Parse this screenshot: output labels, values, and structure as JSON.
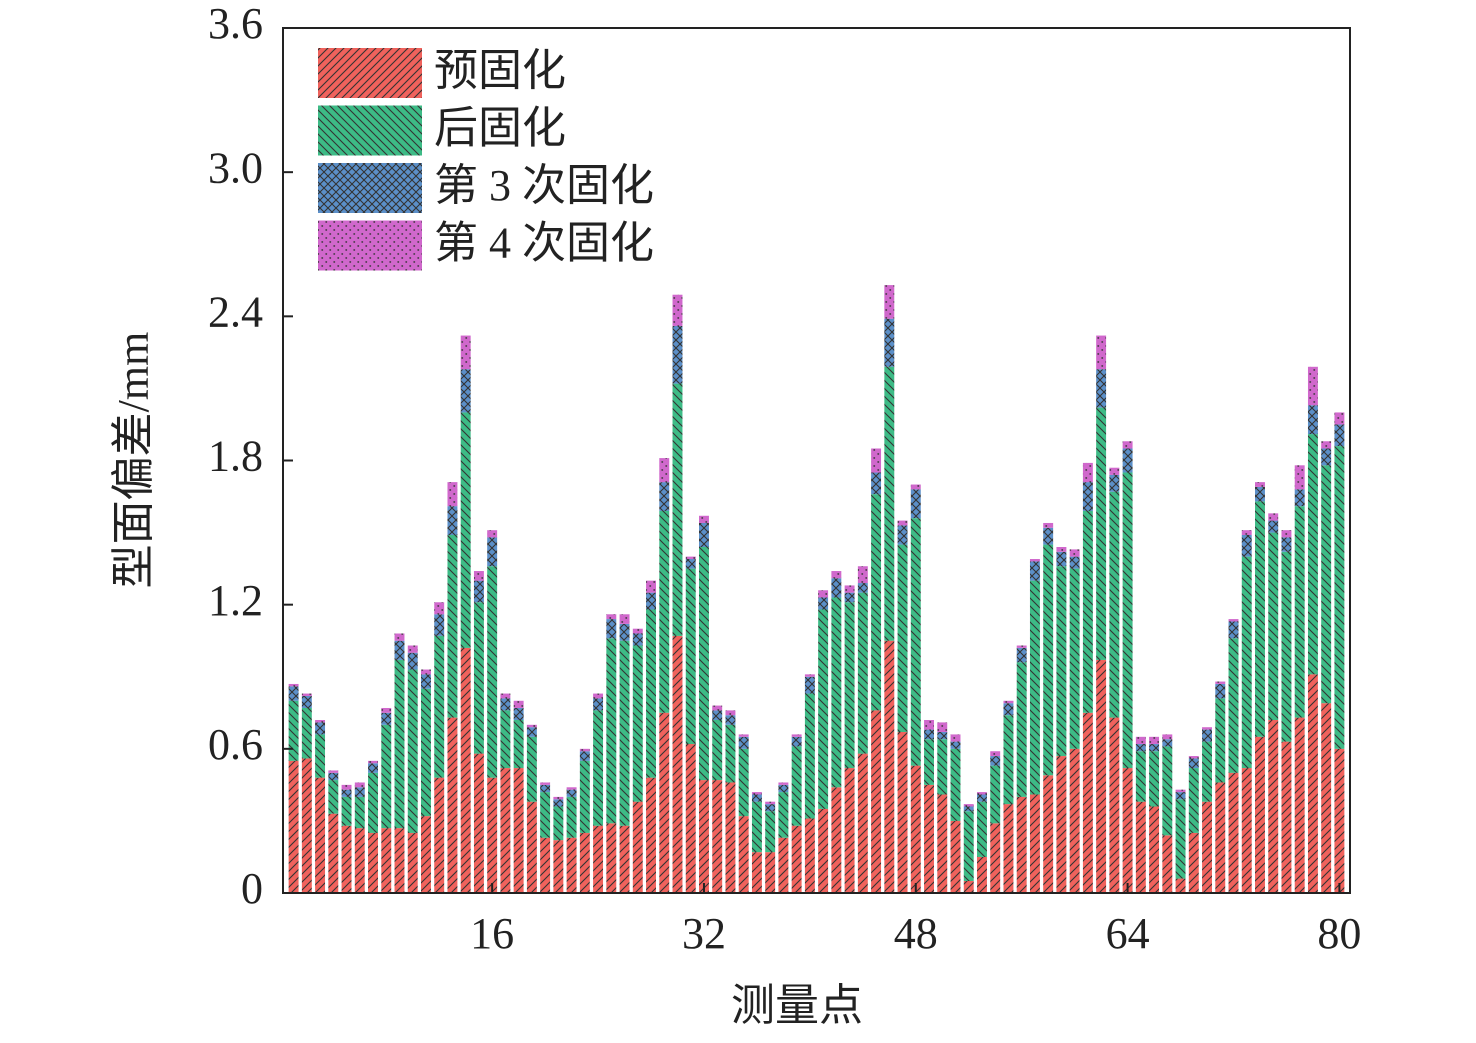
{
  "chart_data": {
    "type": "stacked_bar",
    "x_label": "测量点",
    "y_label": "型面偏差/mm",
    "x": [
      1,
      2,
      3,
      4,
      5,
      6,
      7,
      8,
      9,
      10,
      11,
      12,
      13,
      14,
      15,
      16,
      17,
      18,
      19,
      20,
      21,
      22,
      23,
      24,
      25,
      26,
      27,
      28,
      29,
      30,
      31,
      32,
      33,
      34,
      35,
      36,
      37,
      38,
      39,
      40,
      41,
      42,
      43,
      44,
      45,
      46,
      47,
      48,
      49,
      50,
      51,
      52,
      53,
      54,
      55,
      56,
      57,
      58,
      59,
      60,
      61,
      62,
      63,
      64,
      65,
      66,
      67,
      68,
      69,
      70,
      71,
      72,
      73,
      74,
      75,
      76,
      77,
      78,
      79,
      80
    ],
    "xlim": [
      0.2,
      80.8
    ],
    "xticks": [
      16,
      32,
      48,
      64,
      80
    ],
    "ylim": [
      0,
      3.6
    ],
    "yticks": [
      0,
      0.6,
      1.2,
      1.8,
      2.4,
      {
        "value": 3,
        "label": "3.0"
      },
      3.6
    ],
    "legend": "upper left",
    "series": [
      {
        "name": "预固化",
        "color": "#f0625c",
        "values": [
          0.55,
          0.56,
          0.48,
          0.33,
          0.28,
          0.27,
          0.25,
          0.27,
          0.27,
          0.25,
          0.32,
          0.48,
          0.73,
          1.02,
          0.58,
          0.48,
          0.52,
          0.52,
          0.38,
          0.23,
          0.22,
          0.23,
          0.25,
          0.28,
          0.29,
          0.28,
          0.38,
          0.48,
          0.75,
          1.07,
          0.62,
          0.47,
          0.47,
          0.46,
          0.32,
          0.17,
          0.17,
          0.23,
          0.28,
          0.31,
          0.35,
          0.44,
          0.52,
          0.58,
          0.76,
          1.05,
          0.67,
          0.53,
          0.45,
          0.41,
          0.3,
          0.05,
          0.15,
          0.29,
          0.37,
          0.4,
          0.41,
          0.49,
          0.57,
          0.6,
          0.75,
          0.97,
          0.73,
          0.52,
          0.38,
          0.36,
          0.24,
          0.06,
          0.25,
          0.38,
          0.46,
          0.5,
          0.52,
          0.65,
          0.72,
          0.63,
          0.73,
          0.91,
          0.79,
          0.6
        ]
      },
      {
        "name": "后固化",
        "color": "#3dbb86",
        "values": [
          0.25,
          0.21,
          0.18,
          0.14,
          0.12,
          0.13,
          0.25,
          0.43,
          0.7,
          0.68,
          0.53,
          0.59,
          0.76,
          0.98,
          0.63,
          0.88,
          0.24,
          0.2,
          0.27,
          0.19,
          0.14,
          0.17,
          0.3,
          0.48,
          0.77,
          0.77,
          0.65,
          0.7,
          0.84,
          1.05,
          0.73,
          0.97,
          0.25,
          0.24,
          0.28,
          0.21,
          0.17,
          0.19,
          0.33,
          0.52,
          0.83,
          0.79,
          0.69,
          0.67,
          0.9,
          1.14,
          0.78,
          1.03,
          0.19,
          0.23,
          0.3,
          0.29,
          0.23,
          0.24,
          0.37,
          0.56,
          0.89,
          0.96,
          0.79,
          0.75,
          0.84,
          1.05,
          0.94,
          1.23,
          0.21,
          0.23,
          0.37,
          0.33,
          0.27,
          0.25,
          0.35,
          0.56,
          0.88,
          0.98,
          0.78,
          0.79,
          0.88,
          1.0,
          0.99,
          1.26
        ]
      },
      {
        "name": "第 3 次固化",
        "color": "#5b8fc8",
        "values": [
          0.06,
          0.05,
          0.05,
          0.03,
          0.03,
          0.04,
          0.04,
          0.05,
          0.08,
          0.07,
          0.06,
          0.09,
          0.12,
          0.18,
          0.09,
          0.12,
          0.05,
          0.05,
          0.04,
          0.03,
          0.03,
          0.03,
          0.04,
          0.05,
          0.08,
          0.07,
          0.05,
          0.07,
          0.12,
          0.24,
          0.04,
          0.1,
          0.04,
          0.04,
          0.05,
          0.03,
          0.03,
          0.03,
          0.04,
          0.07,
          0.05,
          0.08,
          0.04,
          0.04,
          0.09,
          0.2,
          0.08,
          0.12,
          0.04,
          0.03,
          0.03,
          0.02,
          0.03,
          0.04,
          0.05,
          0.06,
          0.08,
          0.07,
          0.06,
          0.05,
          0.12,
          0.16,
          0.07,
          0.1,
          0.03,
          0.03,
          0.03,
          0.03,
          0.04,
          0.05,
          0.06,
          0.07,
          0.09,
          0.06,
          0.05,
          0.06,
          0.07,
          0.12,
          0.07,
          0.09
        ]
      },
      {
        "name": "第 4 次固化",
        "color": "#d068cc",
        "values": [
          0.01,
          0.01,
          0.01,
          0.01,
          0.02,
          0.02,
          0.01,
          0.02,
          0.03,
          0.03,
          0.02,
          0.05,
          0.1,
          0.14,
          0.04,
          0.03,
          0.02,
          0.03,
          0.01,
          0.01,
          0.01,
          0.01,
          0.01,
          0.02,
          0.02,
          0.04,
          0.02,
          0.05,
          0.1,
          0.13,
          0.01,
          0.03,
          0.02,
          0.02,
          0.01,
          0.01,
          0.01,
          0.01,
          0.01,
          0.01,
          0.03,
          0.03,
          0.03,
          0.07,
          0.1,
          0.14,
          0.02,
          0.02,
          0.04,
          0.04,
          0.03,
          0.01,
          0.01,
          0.02,
          0.01,
          0.01,
          0.01,
          0.02,
          0.02,
          0.03,
          0.08,
          0.14,
          0.03,
          0.03,
          0.03,
          0.03,
          0.02,
          0.01,
          0.01,
          0.01,
          0.01,
          0.01,
          0.02,
          0.02,
          0.03,
          0.03,
          0.1,
          0.16,
          0.03,
          0.05
        ]
      }
    ]
  }
}
